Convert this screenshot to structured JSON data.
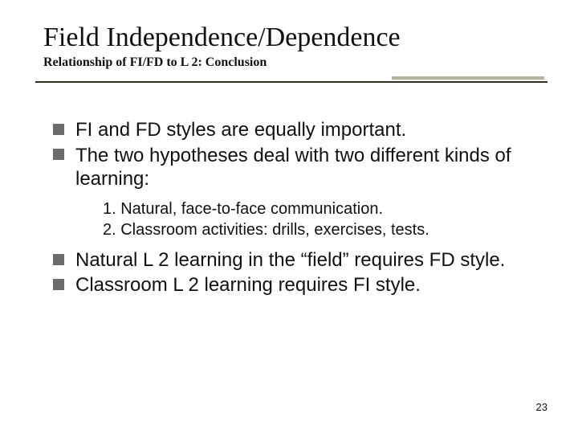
{
  "slide": {
    "title": "Field Independence/Dependence",
    "subtitle": "Relationship of FI/FD to L 2: Conclusion",
    "title_fontsize": 34,
    "subtitle_fontsize": 16,
    "rule_color": "#3a2a1a",
    "accent_color": "#b7b09a",
    "bullet_color": "#6b6b6b",
    "body_fontsize": 24,
    "sub_fontsize": 20,
    "bullets": [
      "FI and FD styles are equally important.",
      "The two hypotheses deal with two different kinds of learning:"
    ],
    "sublist": [
      "1. Natural, face-to-face communication.",
      "2. Classroom activities: drills, exercises, tests."
    ],
    "bullets2": [
      "Natural L 2 learning in the “field” requires FD style.",
      "Classroom L 2 learning requires FI style."
    ],
    "page_number": "23",
    "pagenum_fontsize": 13
  }
}
